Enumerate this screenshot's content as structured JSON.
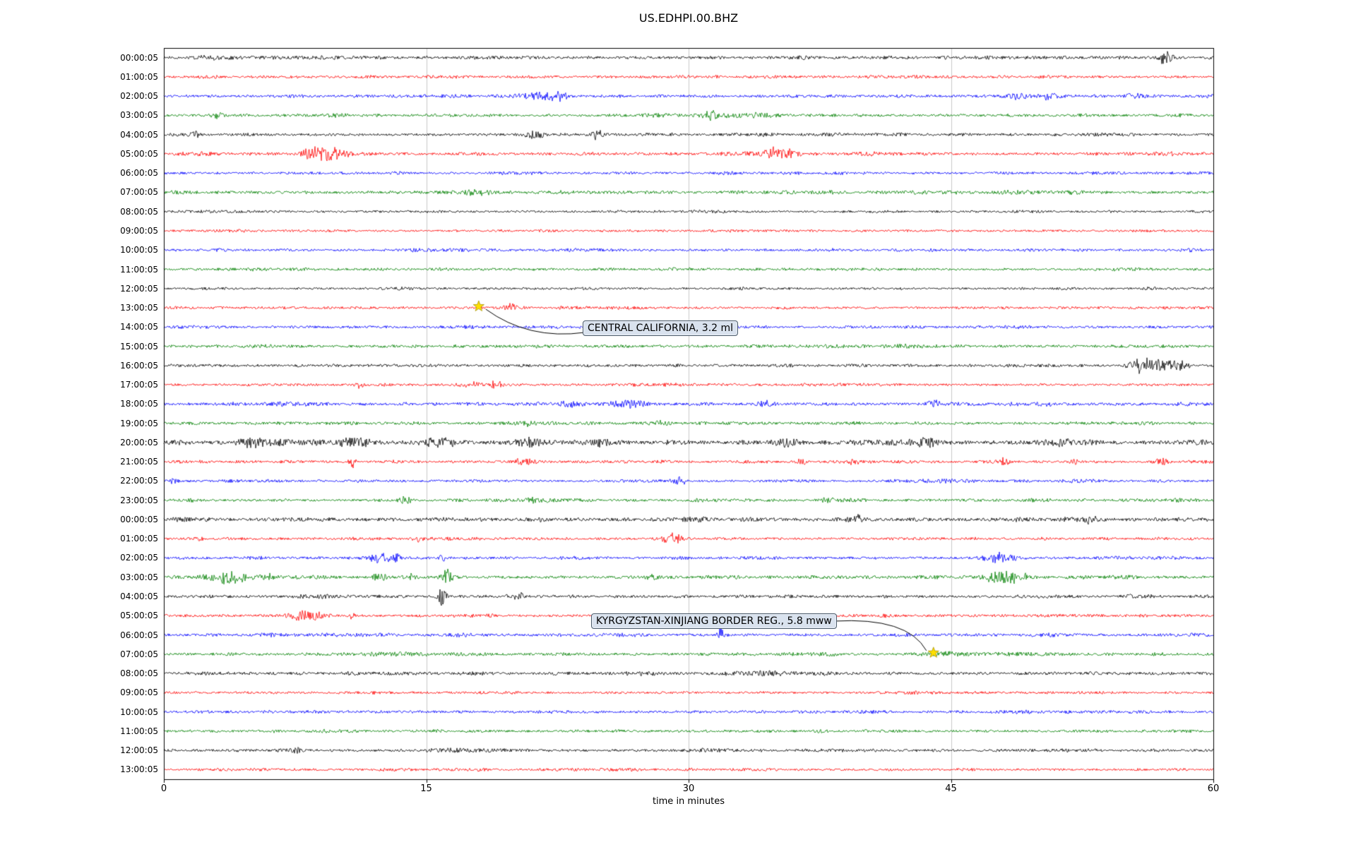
{
  "chart_data": {
    "type": "line",
    "subtype": "seismogram-dayplot",
    "title": "US.EDHPI.00.BHZ",
    "xlabel": "time in minutes",
    "xlim": [
      0,
      60
    ],
    "x_ticks": [
      "0",
      "15",
      "30",
      "45",
      "60"
    ],
    "grid": "vertical",
    "grid_minutes": [
      15,
      30,
      45
    ],
    "trace_color_cycle": [
      "#000000",
      "#ff0000",
      "#0000ff",
      "#008000"
    ],
    "rows": [
      {
        "label": "00:00:05",
        "color": "#000000",
        "amp": 2.2,
        "bursts": [
          [
            57.3,
            0.35,
            8
          ]
        ]
      },
      {
        "label": "01:00:05",
        "color": "#ff0000",
        "amp": 1.8,
        "bursts": []
      },
      {
        "label": "02:00:05",
        "color": "#0000ff",
        "amp": 2.0,
        "bursts": [
          [
            21.5,
            1.2,
            4.5
          ],
          [
            22.6,
            0.5,
            3.5
          ],
          [
            48.8,
            0.8,
            4
          ],
          [
            50.5,
            0.6,
            3.5
          ],
          [
            55.5,
            0.5,
            4
          ]
        ]
      },
      {
        "label": "03:00:05",
        "color": "#008000",
        "amp": 2.0,
        "bursts": [
          [
            3.0,
            0.3,
            4
          ],
          [
            31.2,
            0.4,
            5
          ],
          [
            33.5,
            1.5,
            2.2
          ]
        ]
      },
      {
        "label": "04:00:05",
        "color": "#000000",
        "amp": 2.0,
        "bursts": [
          [
            1.8,
            0.4,
            4
          ],
          [
            21.2,
            0.6,
            3.5
          ],
          [
            24.8,
            0.3,
            5
          ]
        ]
      },
      {
        "label": "05:00:05",
        "color": "#ff0000",
        "amp": 2.0,
        "bursts": [
          [
            8.3,
            0.5,
            5
          ],
          [
            9.4,
            1.0,
            9
          ],
          [
            35.2,
            0.9,
            6
          ]
        ]
      },
      {
        "label": "06:00:05",
        "color": "#0000ff",
        "amp": 1.8,
        "bursts": []
      },
      {
        "label": "07:00:05",
        "color": "#008000",
        "amp": 2.2,
        "bursts": [
          [
            17.8,
            1.0,
            2.5
          ]
        ]
      },
      {
        "label": "08:00:05",
        "color": "#000000",
        "amp": 1.6,
        "bursts": []
      },
      {
        "label": "09:00:05",
        "color": "#ff0000",
        "amp": 1.6,
        "bursts": []
      },
      {
        "label": "10:00:05",
        "color": "#0000ff",
        "amp": 1.8,
        "bursts": []
      },
      {
        "label": "11:00:05",
        "color": "#008000",
        "amp": 1.8,
        "bursts": []
      },
      {
        "label": "12:00:05",
        "color": "#000000",
        "amp": 1.6,
        "bursts": []
      },
      {
        "label": "13:00:05",
        "color": "#ff0000",
        "amp": 1.7,
        "bursts": [
          [
            19.8,
            0.5,
            4
          ]
        ]
      },
      {
        "label": "14:00:05",
        "color": "#0000ff",
        "amp": 1.8,
        "bursts": []
      },
      {
        "label": "15:00:05",
        "color": "#008000",
        "amp": 2.0,
        "bursts": [
          [
            42.5,
            0.8,
            2.5
          ]
        ]
      },
      {
        "label": "16:00:05",
        "color": "#000000",
        "amp": 2.0,
        "bursts": [
          [
            55.9,
            0.7,
            8
          ],
          [
            57.0,
            0.6,
            8
          ],
          [
            58.1,
            0.5,
            5
          ]
        ]
      },
      {
        "label": "17:00:05",
        "color": "#ff0000",
        "amp": 1.8,
        "bursts": [
          [
            11.2,
            0.3,
            3.5
          ],
          [
            17.5,
            0.5,
            3.5
          ],
          [
            19.0,
            0.5,
            3.5
          ]
        ]
      },
      {
        "label": "18:00:05",
        "color": "#0000ff",
        "amp": 2.2,
        "bursts": [
          [
            23.3,
            0.6,
            3.5
          ],
          [
            26.6,
            1.0,
            4.5
          ],
          [
            34.5,
            0.5,
            3
          ],
          [
            44.0,
            0.5,
            3.5
          ]
        ]
      },
      {
        "label": "19:00:05",
        "color": "#008000",
        "amp": 2.0,
        "bursts": [
          [
            20.8,
            0.8,
            2.5
          ],
          [
            28.5,
            0.5,
            2.5
          ]
        ]
      },
      {
        "label": "20:00:05",
        "color": "#000000",
        "amp": 3.0,
        "bursts": [
          [
            5.0,
            1.0,
            3.5
          ],
          [
            11.0,
            1.0,
            4.5
          ],
          [
            15.8,
            1.2,
            4.5
          ],
          [
            21.0,
            0.8,
            4.5
          ],
          [
            25.0,
            0.5,
            3.5
          ],
          [
            35.5,
            0.8,
            3.5
          ],
          [
            43.5,
            0.8,
            3.5
          ],
          [
            51.0,
            0.8,
            3.5
          ]
        ]
      },
      {
        "label": "21:00:05",
        "color": "#ff0000",
        "amp": 1.8,
        "bursts": [
          [
            10.8,
            0.2,
            6
          ],
          [
            20.5,
            0.8,
            3.5
          ],
          [
            36.5,
            0.3,
            3.5
          ],
          [
            39.5,
            0.3,
            3
          ],
          [
            48.0,
            0.3,
            3
          ],
          [
            52.0,
            0.3,
            3
          ],
          [
            57.0,
            0.4,
            3.5
          ]
        ]
      },
      {
        "label": "22:00:05",
        "color": "#0000ff",
        "amp": 1.8,
        "bursts": [
          [
            0.5,
            0.3,
            5
          ],
          [
            29.5,
            0.4,
            4
          ]
        ]
      },
      {
        "label": "23:00:05",
        "color": "#008000",
        "amp": 2.0,
        "bursts": [
          [
            13.8,
            0.5,
            3.5
          ],
          [
            21.0,
            0.3,
            2.8
          ],
          [
            38.0,
            0.4,
            2.8
          ]
        ]
      },
      {
        "label": "00:00:05",
        "color": "#000000",
        "amp": 2.6,
        "bursts": [
          [
            39.7,
            0.2,
            5
          ],
          [
            53.0,
            0.3,
            4
          ]
        ]
      },
      {
        "label": "01:00:05",
        "color": "#ff0000",
        "amp": 1.8,
        "bursts": [
          [
            2.0,
            0.3,
            3
          ],
          [
            14.5,
            0.3,
            3
          ],
          [
            29.0,
            0.6,
            6
          ]
        ]
      },
      {
        "label": "02:00:05",
        "color": "#0000ff",
        "amp": 2.0,
        "bursts": [
          [
            12.3,
            0.7,
            5
          ],
          [
            13.3,
            0.5,
            4
          ],
          [
            16.0,
            0.3,
            3
          ],
          [
            47.9,
            0.9,
            6
          ]
        ]
      },
      {
        "label": "03:00:05",
        "color": "#008000",
        "amp": 2.2,
        "bursts": [
          [
            3.2,
            1.0,
            5.5
          ],
          [
            4.3,
            0.6,
            4.5
          ],
          [
            6.0,
            0.5,
            3.5
          ],
          [
            12.3,
            0.4,
            4.5
          ],
          [
            14.0,
            0.4,
            3.5
          ],
          [
            16.2,
            0.3,
            8
          ],
          [
            28.0,
            0.4,
            2.8
          ],
          [
            47.9,
            0.9,
            6.5
          ],
          [
            48.9,
            0.5,
            4
          ]
        ]
      },
      {
        "label": "04:00:05",
        "color": "#000000",
        "amp": 2.0,
        "bursts": [
          [
            15.9,
            0.25,
            10
          ],
          [
            20.3,
            0.3,
            4
          ]
        ]
      },
      {
        "label": "05:00:05",
        "color": "#ff0000",
        "amp": 2.0,
        "bursts": [
          [
            7.8,
            0.6,
            5
          ],
          [
            8.7,
            0.4,
            4
          ],
          [
            10.8,
            0.25,
            4
          ]
        ]
      },
      {
        "label": "06:00:05",
        "color": "#0000ff",
        "amp": 2.0,
        "bursts": [
          [
            31.9,
            0.2,
            11
          ]
        ]
      },
      {
        "label": "07:00:05",
        "color": "#008000",
        "amp": 2.0,
        "bursts": [
          [
            44.8,
            1.5,
            1.8
          ]
        ]
      },
      {
        "label": "08:00:05",
        "color": "#000000",
        "amp": 2.2,
        "bursts": []
      },
      {
        "label": "09:00:05",
        "color": "#ff0000",
        "amp": 1.7,
        "bursts": []
      },
      {
        "label": "10:00:05",
        "color": "#0000ff",
        "amp": 1.9,
        "bursts": []
      },
      {
        "label": "11:00:05",
        "color": "#008000",
        "amp": 1.9,
        "bursts": []
      },
      {
        "label": "12:00:05",
        "color": "#000000",
        "amp": 2.0,
        "bursts": [
          [
            7.5,
            0.3,
            3
          ]
        ]
      },
      {
        "label": "13:00:05",
        "color": "#ff0000",
        "amp": 1.7,
        "bursts": []
      }
    ],
    "events": [
      {
        "label": "CENTRAL CALIFORNIA, 3.2 ml",
        "row_index": 13,
        "row_label": "13:00:05",
        "minute": 18.0,
        "marker": "star",
        "marker_color": "#ffdf00"
      },
      {
        "label": "KYRGYZSTAN-XINJIANG BORDER REG., 5.8 mww",
        "row_index": 31,
        "row_label": "07:00:05",
        "minute": 44.0,
        "marker": "star",
        "marker_color": "#ffdf00"
      }
    ]
  }
}
